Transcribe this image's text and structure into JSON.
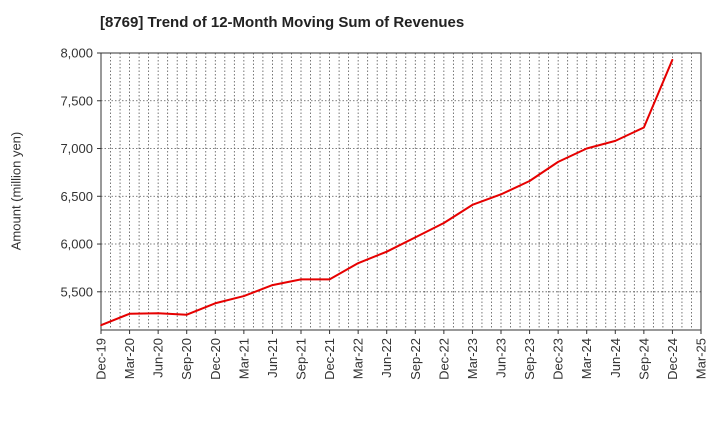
{
  "chart_data": {
    "type": "line",
    "title": "[8769]  Trend of 12-Month Moving Sum of Revenues",
    "xlabel": "",
    "ylabel": "Amount (million yen)",
    "ylim": [
      5100,
      8000
    ],
    "y_ticks": [
      5500,
      6000,
      6500,
      7000,
      7500,
      8000
    ],
    "y_tick_labels": [
      "5,500",
      "6,000",
      "6,500",
      "7,000",
      "7,500",
      "8,000"
    ],
    "x_tick_labels": [
      "Dec-19",
      "Mar-20",
      "Jun-20",
      "Sep-20",
      "Dec-20",
      "Mar-21",
      "Jun-21",
      "Sep-21",
      "Dec-21",
      "Mar-22",
      "Jun-22",
      "Sep-22",
      "Dec-22",
      "Mar-23",
      "Jun-23",
      "Sep-23",
      "Dec-23",
      "Mar-24",
      "Jun-24",
      "Sep-24",
      "Dec-24",
      "Mar-25"
    ],
    "grid": true,
    "line_color": "#e60000",
    "series": [
      {
        "x": [
          "Dec-19",
          "Mar-20",
          "Jun-20",
          "Sep-20",
          "Dec-20",
          "Mar-21",
          "Jun-21",
          "Sep-21",
          "Dec-21",
          "Mar-22",
          "Jun-22",
          "Sep-22",
          "Dec-22",
          "Mar-23",
          "Jun-23",
          "Sep-23",
          "Dec-23",
          "Mar-24",
          "Jun-24",
          "Sep-24",
          "Dec-24"
        ],
        "values": [
          5150,
          5270,
          5275,
          5260,
          5380,
          5455,
          5570,
          5630,
          5630,
          5800,
          5920,
          6070,
          6220,
          6410,
          6520,
          6660,
          6860,
          7000,
          7080,
          7220,
          7930
        ]
      }
    ]
  }
}
